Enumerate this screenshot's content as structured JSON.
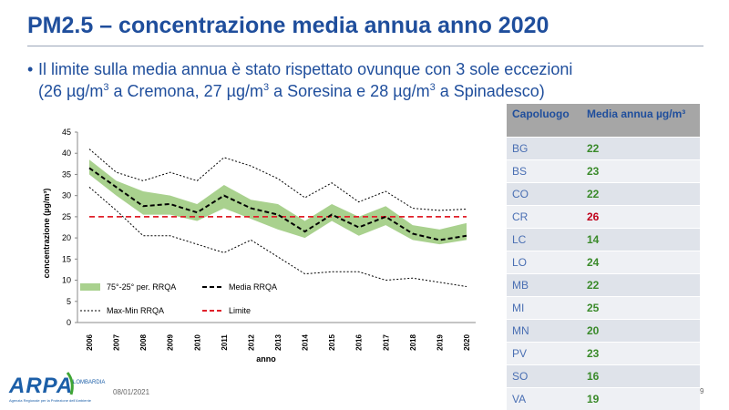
{
  "slide": {
    "title": "PM2.5 – concentrazione media annua anno 2020",
    "bullet": {
      "marker": "•",
      "t1": "Il limite sulla media annua è stato rispettato ovunque con 3 sole eccezioni",
      "t2": "(26 µg/m",
      "s1": "3",
      "t3": " a Cremona, 27 µg/m",
      "s2": "3",
      "t4": " a Soresina e 28 µg/m",
      "s3": "3",
      "t5": " a Spinadesco)"
    },
    "date": "08/01/2021",
    "page_number": "9",
    "logo": {
      "text": "ARPA",
      "region": "LOMBARDIA",
      "tagline": "Agenzia Regionale per la Protezione dell'Ambiente"
    }
  },
  "chart_data": {
    "type": "line",
    "x": [
      2006,
      2007,
      2008,
      2009,
      2010,
      2011,
      2012,
      2013,
      2014,
      2015,
      2016,
      2017,
      2018,
      2019,
      2020
    ],
    "band_upper": [
      38.5,
      33.5,
      31,
      30,
      28,
      32.5,
      29,
      28,
      24,
      28,
      25,
      27.5,
      23,
      22,
      23.5
    ],
    "band_lower": [
      35,
      30,
      25.5,
      25.5,
      24,
      27,
      24.5,
      22,
      20,
      24,
      20.5,
      23,
      19.5,
      18.5,
      19.5
    ],
    "media": [
      36.5,
      32,
      27.5,
      28,
      26,
      30,
      27,
      25.5,
      21.5,
      25.5,
      22.5,
      25,
      21,
      19.5,
      20.5
    ],
    "max": [
      41,
      35.5,
      33.5,
      35.5,
      33.5,
      39,
      37,
      34,
      29.5,
      33,
      28.5,
      31,
      27,
      26.5,
      26.8
    ],
    "min": [
      32,
      26.5,
      20.5,
      20.5,
      18.5,
      16.5,
      19.5,
      15.5,
      11.5,
      12,
      12,
      10,
      10.5,
      9.5,
      8.5
    ],
    "limite": 25,
    "ylim": [
      0,
      45
    ],
    "yticks": [
      0,
      5,
      10,
      15,
      20,
      25,
      30,
      35,
      40,
      45
    ],
    "xlabel": "anno",
    "ylabel": "concentrazione (µg/m³)",
    "legend": {
      "band": "75°-25° per. RRQA",
      "media": "Media RRQA",
      "maxmin": "Max-Min RRQA",
      "limite": "Limite"
    },
    "colors": {
      "band": "#a9d18e",
      "media": "#000000",
      "maxmin": "#000000",
      "limite": "#e0202a"
    },
    "grid": false,
    "legend_placement": "bottom-inside"
  },
  "table": {
    "headers": [
      "Capoluogo",
      "Media annua µg/m³"
    ],
    "rows": [
      {
        "city": "BG",
        "value": "22"
      },
      {
        "city": "BS",
        "value": "23"
      },
      {
        "city": "CO",
        "value": "22"
      },
      {
        "city": "CR",
        "value": "26",
        "exceeds": true
      },
      {
        "city": "LC",
        "value": "14"
      },
      {
        "city": "LO",
        "value": "24"
      },
      {
        "city": "MB",
        "value": "22"
      },
      {
        "city": "MI",
        "value": "25"
      },
      {
        "city": "MN",
        "value": "20"
      },
      {
        "city": "PV",
        "value": "23"
      },
      {
        "city": "SO",
        "value": "16"
      },
      {
        "city": "VA",
        "value": "19"
      }
    ],
    "colors": {
      "ok": "#3a8a2a",
      "exceeds": "#c0001a"
    }
  }
}
